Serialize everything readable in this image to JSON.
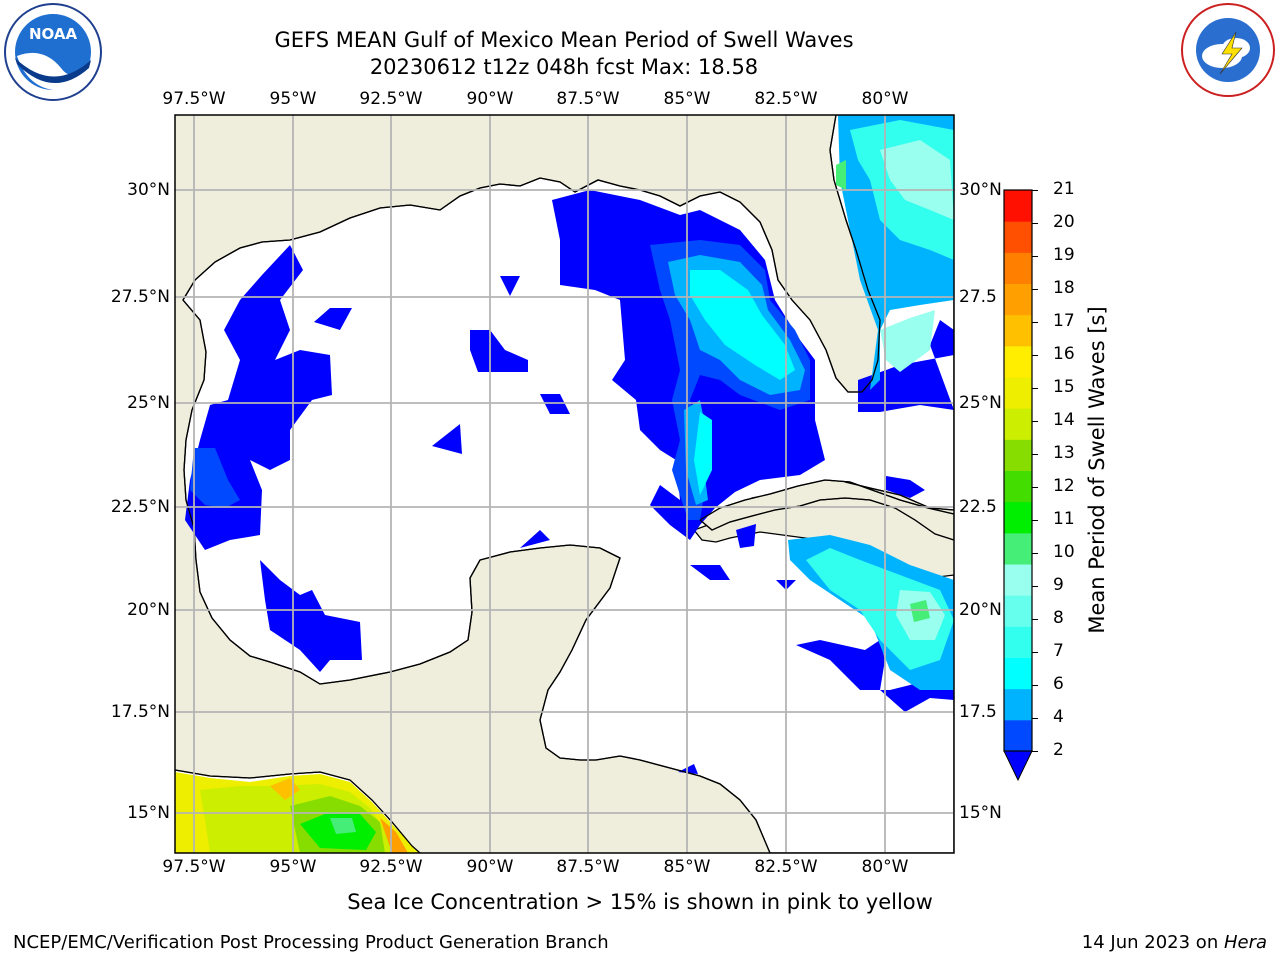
{
  "title_line1": "GEFS MEAN Gulf of Mexico Mean Period of Swell Waves",
  "title_line2": "20230612 t12z 048h fcst   Max: 18.58",
  "lon_labels": [
    "97.5°W",
    "95°W",
    "92.5°W",
    "90°W",
    "87.5°W",
    "85°W",
    "82.5°W",
    "80°W"
  ],
  "lat_labels_left": [
    "30°N",
    "27.5°N",
    "25°N",
    "22.5°N",
    "20°N",
    "17.5°N",
    "15°N"
  ],
  "lat_labels_right": [
    "30°N",
    "27.5",
    "25°N",
    "22.5",
    "20°N",
    "17.5",
    "15°N"
  ],
  "colorbar": {
    "label": "Mean Period of Swell Waves [s]",
    "ticks": [
      "2",
      "4",
      "6",
      "7",
      "8",
      "9",
      "10",
      "11",
      "12",
      "13",
      "14",
      "15",
      "16",
      "17",
      "18",
      "19",
      "20",
      "21"
    ],
    "colors": [
      "#0049ff",
      "#00b3ff",
      "#00ffff",
      "#33ffee",
      "#66ffee",
      "#99ffee",
      "#44ee77",
      "#00ee00",
      "#44dd00",
      "#88dd00",
      "#ccee00",
      "#eeee00",
      "#ffee00",
      "#ffc000",
      "#ff9f00",
      "#ff7f00",
      "#ff4f00",
      "#ff1000"
    ],
    "underflow_color": "#0000ff"
  },
  "caption": "Sea Ice Concentration > 15% is shown in pink to yellow",
  "footer_left": "NCEP/EMC/Verification Post Processing Product Generation Branch",
  "footer_right_date": "14 Jun 2023 on ",
  "footer_right_host": "Hera",
  "logo_left_text": "NOAA",
  "colors": {
    "land": "#efeedd",
    "ocean": "#ffffff",
    "grid": "#b4b4b4",
    "coast": "#000000"
  }
}
